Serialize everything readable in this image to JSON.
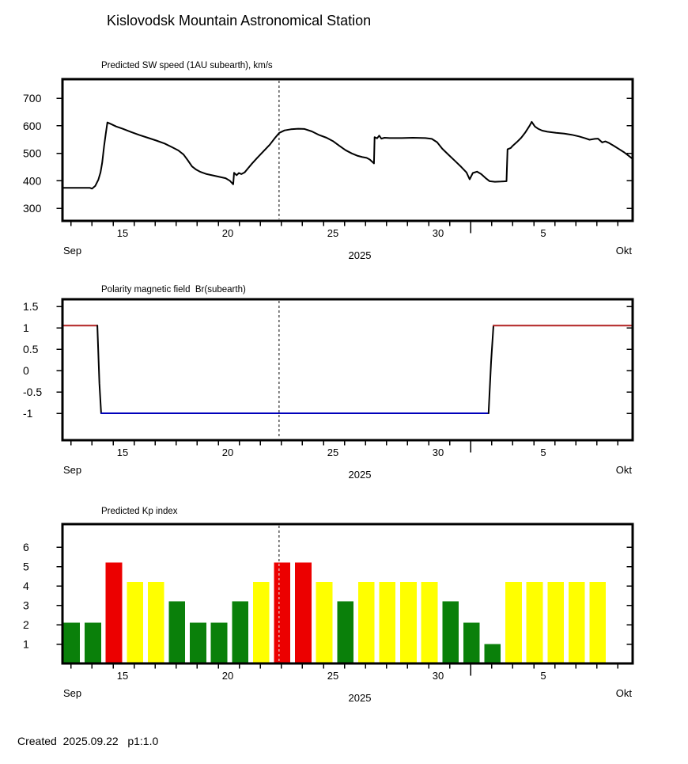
{
  "page_title": "Kislovodsk Mountain Astronomical Station",
  "footer": "Created  2025.09.22   p1:1.0",
  "colors": {
    "line": "#000000",
    "polarity_positive": "#b22222",
    "polarity_negative": "#0000bb",
    "kp_green": "#0a800a",
    "kp_yellow": "#ffff00",
    "kp_red": "#ec0000",
    "now_line": "#000000",
    "background": "#ffffff"
  },
  "x_axis": {
    "domain": {
      "start_day": 12.14,
      "end_day": 39.25
    },
    "labeled_ticks": [
      {
        "day": 15,
        "label": "15"
      },
      {
        "day": 20,
        "label": "20"
      },
      {
        "day": 25,
        "label": "25"
      },
      {
        "day": 30,
        "label": "30"
      },
      {
        "day": 35,
        "label": "5"
      }
    ],
    "month_boundary_tick_day": 31,
    "left_month_label": "Sep",
    "right_month_label": "Okt",
    "year_label": "2025",
    "now_day": 22.44
  },
  "chart_data": [
    {
      "id": "sw-speed",
      "type": "line",
      "title": "Predicted SW speed (1AU subearth), km/s",
      "ylabel": "km/s",
      "ylim": [
        254,
        769
      ],
      "yticks": [
        {
          "v": 700,
          "label": "700"
        },
        {
          "v": 600,
          "label": "600"
        },
        {
          "v": 500,
          "label": "500"
        },
        {
          "v": 400,
          "label": "400"
        },
        {
          "v": 300,
          "label": "300"
        }
      ],
      "series": {
        "name": "Predicted SW speed",
        "color_key": "line",
        "points": [
          [
            12.14,
            374
          ],
          [
            12.6,
            374
          ],
          [
            13.1,
            374
          ],
          [
            13.45,
            374
          ],
          [
            13.55,
            371
          ],
          [
            13.7,
            381
          ],
          [
            13.85,
            404
          ],
          [
            13.95,
            430
          ],
          [
            14.03,
            465
          ],
          [
            14.12,
            525
          ],
          [
            14.2,
            570
          ],
          [
            14.28,
            612
          ],
          [
            14.45,
            606
          ],
          [
            14.7,
            597
          ],
          [
            15.0,
            589
          ],
          [
            15.4,
            577
          ],
          [
            15.8,
            566
          ],
          [
            16.2,
            556
          ],
          [
            16.6,
            546
          ],
          [
            17.0,
            535
          ],
          [
            17.35,
            522
          ],
          [
            17.65,
            510
          ],
          [
            17.9,
            495
          ],
          [
            18.1,
            474
          ],
          [
            18.3,
            452
          ],
          [
            18.5,
            440
          ],
          [
            18.7,
            432
          ],
          [
            19.0,
            424
          ],
          [
            19.3,
            419
          ],
          [
            19.6,
            414
          ],
          [
            19.9,
            409
          ],
          [
            20.1,
            400
          ],
          [
            20.22,
            390
          ],
          [
            20.26,
            387
          ],
          [
            20.3,
            429
          ],
          [
            20.42,
            420
          ],
          [
            20.53,
            428
          ],
          [
            20.65,
            424
          ],
          [
            20.8,
            430
          ],
          [
            20.95,
            444
          ],
          [
            21.15,
            462
          ],
          [
            21.4,
            483
          ],
          [
            21.7,
            507
          ],
          [
            22.0,
            531
          ],
          [
            22.25,
            556
          ],
          [
            22.45,
            574
          ],
          [
            22.7,
            583
          ],
          [
            23.0,
            587
          ],
          [
            23.35,
            589
          ],
          [
            23.65,
            588
          ],
          [
            24.0,
            579
          ],
          [
            24.35,
            566
          ],
          [
            24.7,
            556
          ],
          [
            25.0,
            544
          ],
          [
            25.3,
            527
          ],
          [
            25.6,
            511
          ],
          [
            25.9,
            499
          ],
          [
            26.15,
            491
          ],
          [
            26.4,
            486
          ],
          [
            26.6,
            483
          ],
          [
            26.75,
            477
          ],
          [
            26.88,
            468
          ],
          [
            26.95,
            463
          ],
          [
            26.98,
            558
          ],
          [
            27.1,
            554
          ],
          [
            27.2,
            564
          ],
          [
            27.3,
            553
          ],
          [
            27.45,
            556
          ],
          [
            27.7,
            555
          ],
          [
            28.2,
            555
          ],
          [
            28.8,
            556
          ],
          [
            29.4,
            555
          ],
          [
            29.7,
            552
          ],
          [
            29.95,
            540
          ],
          [
            30.2,
            516
          ],
          [
            30.5,
            494
          ],
          [
            30.8,
            472
          ],
          [
            31.1,
            450
          ],
          [
            31.35,
            430
          ],
          [
            31.5,
            405
          ],
          [
            31.65,
            428
          ],
          [
            31.85,
            433
          ],
          [
            32.05,
            424
          ],
          [
            32.25,
            410
          ],
          [
            32.45,
            398
          ],
          [
            32.7,
            396
          ],
          [
            33.0,
            397
          ],
          [
            33.25,
            398
          ],
          [
            33.3,
            514
          ],
          [
            33.45,
            519
          ],
          [
            33.55,
            527
          ],
          [
            33.75,
            541
          ],
          [
            33.95,
            556
          ],
          [
            34.15,
            576
          ],
          [
            34.35,
            600
          ],
          [
            34.45,
            614
          ],
          [
            34.6,
            597
          ],
          [
            34.75,
            589
          ],
          [
            34.95,
            582
          ],
          [
            35.2,
            578
          ],
          [
            35.6,
            574
          ],
          [
            36.0,
            571
          ],
          [
            36.35,
            567
          ],
          [
            36.7,
            561
          ],
          [
            37.0,
            554
          ],
          [
            37.2,
            549
          ],
          [
            37.45,
            552
          ],
          [
            37.6,
            553
          ],
          [
            37.8,
            539
          ],
          [
            37.95,
            543
          ],
          [
            38.1,
            538
          ],
          [
            38.35,
            527
          ],
          [
            38.6,
            515
          ],
          [
            38.85,
            503
          ],
          [
            39.05,
            491
          ],
          [
            39.25,
            479
          ]
        ]
      }
    },
    {
      "id": "polarity",
      "type": "segmented-line",
      "title": "Polarity magnetic field  Br(subearth)",
      "ylim": [
        -1.63,
        1.67
      ],
      "yticks": [
        {
          "v": 1.5,
          "label": "1.5"
        },
        {
          "v": 1,
          "label": "1"
        },
        {
          "v": 0.5,
          "label": "0.5"
        },
        {
          "v": 0,
          "label": "0"
        },
        {
          "v": -0.5,
          "label": "-0.5"
        },
        {
          "v": -1,
          "label": "-1"
        }
      ],
      "segments": [
        {
          "role": "positive",
          "color_key": "polarity_positive",
          "points": [
            [
              12.14,
              1.05
            ],
            [
              13.8,
              1.05
            ]
          ]
        },
        {
          "role": "transition-down",
          "color_key": "line",
          "points": [
            [
              13.8,
              1.05
            ],
            [
              13.9,
              -0.3
            ],
            [
              13.98,
              -1.0
            ]
          ]
        },
        {
          "role": "negative",
          "color_key": "polarity_negative",
          "points": [
            [
              13.98,
              -1.0
            ],
            [
              32.4,
              -1.0
            ]
          ]
        },
        {
          "role": "transition-up",
          "color_key": "line",
          "points": [
            [
              32.4,
              -1.0
            ],
            [
              32.52,
              0.2
            ],
            [
              32.63,
              1.05
            ]
          ]
        },
        {
          "role": "positive",
          "color_key": "polarity_positive",
          "points": [
            [
              32.63,
              1.05
            ],
            [
              39.25,
              1.05
            ]
          ]
        }
      ]
    },
    {
      "id": "kp-index",
      "type": "bar",
      "title": "Predicted Kp index",
      "ylim": [
        0,
        7.18
      ],
      "yticks": [
        {
          "v": 6,
          "label": "6"
        },
        {
          "v": 5,
          "label": "5"
        },
        {
          "v": 4,
          "label": "4"
        },
        {
          "v": 3,
          "label": "3"
        },
        {
          "v": 2,
          "label": "2"
        },
        {
          "v": 1,
          "label": "1"
        }
      ],
      "bars": [
        {
          "day": 12,
          "kp": 2.1,
          "level": "green"
        },
        {
          "day": 13,
          "kp": 2.1,
          "level": "green"
        },
        {
          "day": 14,
          "kp": 5.2,
          "level": "red"
        },
        {
          "day": 15,
          "kp": 4.2,
          "level": "yellow"
        },
        {
          "day": 16,
          "kp": 4.2,
          "level": "yellow"
        },
        {
          "day": 17,
          "kp": 3.2,
          "level": "green"
        },
        {
          "day": 18,
          "kp": 2.1,
          "level": "green"
        },
        {
          "day": 19,
          "kp": 2.1,
          "level": "green"
        },
        {
          "day": 20,
          "kp": 3.2,
          "level": "green"
        },
        {
          "day": 21,
          "kp": 4.2,
          "level": "yellow"
        },
        {
          "day": 22,
          "kp": 5.2,
          "level": "red"
        },
        {
          "day": 23,
          "kp": 5.2,
          "level": "red"
        },
        {
          "day": 24,
          "kp": 4.2,
          "level": "yellow"
        },
        {
          "day": 25,
          "kp": 3.2,
          "level": "green"
        },
        {
          "day": 26,
          "kp": 4.2,
          "level": "yellow"
        },
        {
          "day": 27,
          "kp": 4.2,
          "level": "yellow"
        },
        {
          "day": 28,
          "kp": 4.2,
          "level": "yellow"
        },
        {
          "day": 29,
          "kp": 4.2,
          "level": "yellow"
        },
        {
          "day": 30,
          "kp": 3.2,
          "level": "green"
        },
        {
          "day": 31,
          "kp": 2.1,
          "level": "green"
        },
        {
          "day": 32,
          "kp": 1.0,
          "level": "green"
        },
        {
          "day": 33,
          "kp": 4.2,
          "level": "yellow"
        },
        {
          "day": 34,
          "kp": 4.2,
          "level": "yellow"
        },
        {
          "day": 35,
          "kp": 4.2,
          "level": "yellow"
        },
        {
          "day": 36,
          "kp": 4.2,
          "level": "yellow"
        },
        {
          "day": 37,
          "kp": 4.2,
          "level": "yellow"
        }
      ]
    }
  ]
}
